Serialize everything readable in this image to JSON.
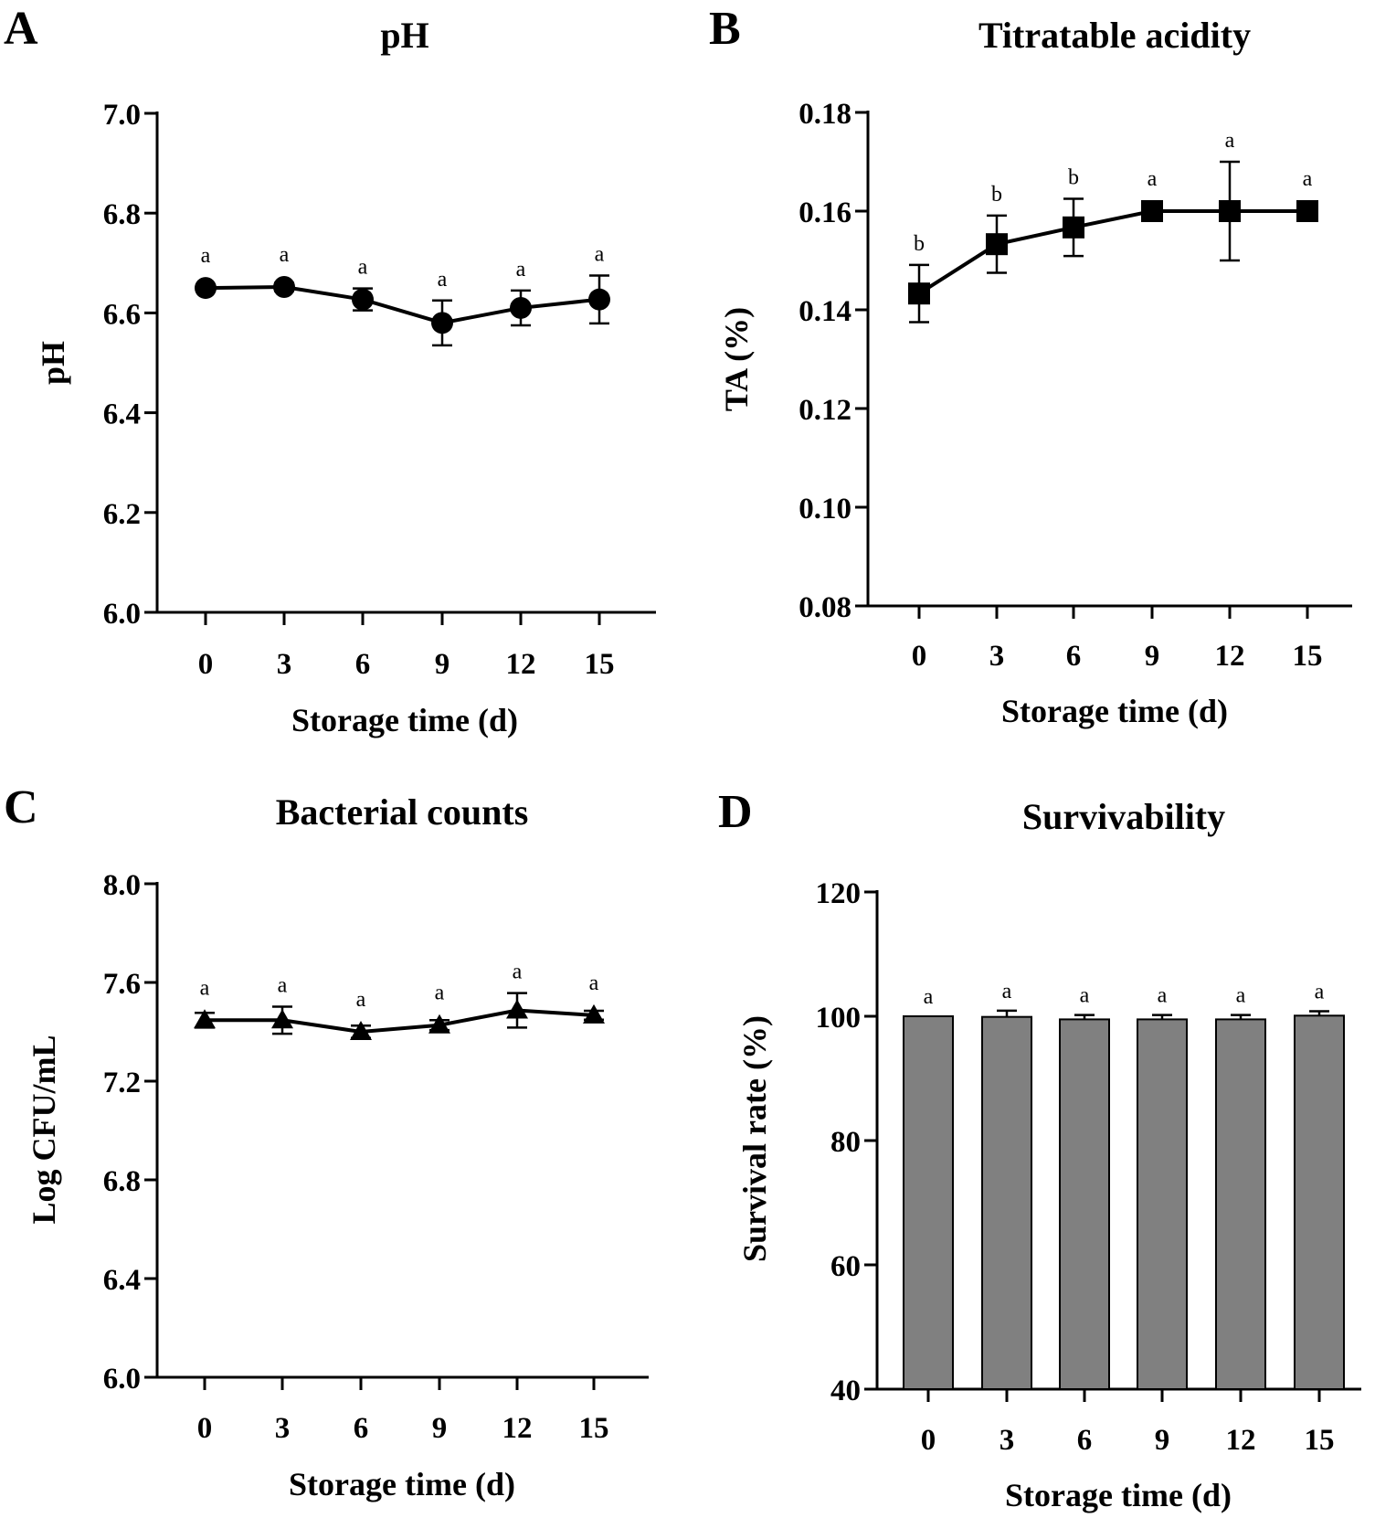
{
  "chart_data": [
    {
      "panel": "A",
      "type": "line",
      "title": "pH",
      "xlabel": "Storage time (d)",
      "ylabel": "pH",
      "x": [
        0,
        3,
        6,
        9,
        12,
        15
      ],
      "x_tick_labels": [
        "0",
        "3",
        "6",
        "9",
        "12",
        "15"
      ],
      "values": [
        6.65,
        6.652,
        6.627,
        6.58,
        6.61,
        6.627
      ],
      "errors": [
        0.006,
        0.008,
        0.022,
        0.045,
        0.035,
        0.048
      ],
      "significance": [
        "a",
        "a",
        "a",
        "a",
        "a",
        "a"
      ],
      "marker": "circle",
      "ylim": [
        6.0,
        7.0
      ],
      "y_ticks": [
        6.0,
        6.2,
        6.4,
        6.6,
        6.8,
        7.0
      ],
      "y_tick_labels": [
        "6.0",
        "6.2",
        "6.4",
        "6.6",
        "6.8",
        "7.0"
      ],
      "grid": false
    },
    {
      "panel": "B",
      "type": "line",
      "title": "Titratable acidity",
      "xlabel": "Storage time (d)",
      "ylabel": "TA (%)",
      "x": [
        0,
        3,
        6,
        9,
        12,
        15
      ],
      "x_tick_labels": [
        "0",
        "3",
        "6",
        "9",
        "12",
        "15"
      ],
      "values": [
        0.1433,
        0.1533,
        0.1567,
        0.16,
        0.16,
        0.16
      ],
      "errors": [
        0.0058,
        0.0058,
        0.0058,
        0.0,
        0.01,
        0.0
      ],
      "significance": [
        "b",
        "b",
        "b",
        "a",
        "a",
        "a"
      ],
      "marker": "square",
      "ylim": [
        0.08,
        0.18
      ],
      "y_ticks": [
        0.08,
        0.1,
        0.12,
        0.14,
        0.16,
        0.18
      ],
      "y_tick_labels": [
        "0.08",
        "0.10",
        "0.12",
        "0.14",
        "0.16",
        "0.18"
      ],
      "grid": false
    },
    {
      "panel": "C",
      "type": "line",
      "title": "Bacterial counts",
      "xlabel": "Storage time (d)",
      "ylabel": "Log CFU/mL",
      "x": [
        0,
        3,
        6,
        9,
        12,
        15
      ],
      "x_tick_labels": [
        "0",
        "3",
        "6",
        "9",
        "12",
        "15"
      ],
      "values": [
        7.447,
        7.447,
        7.4,
        7.427,
        7.487,
        7.467
      ],
      "errors": [
        0.03,
        0.055,
        0.025,
        0.02,
        0.07,
        0.018
      ],
      "significance": [
        "a",
        "a",
        "a",
        "a",
        "a",
        "a"
      ],
      "marker": "triangle",
      "ylim": [
        6.0,
        8.0
      ],
      "y_ticks": [
        6.0,
        6.4,
        6.8,
        7.2,
        7.6,
        8.0
      ],
      "y_tick_labels": [
        "6.0",
        "6.4",
        "6.8",
        "7.2",
        "7.6",
        "8.0"
      ],
      "grid": false
    },
    {
      "panel": "D",
      "type": "bar",
      "title": "Survivability",
      "xlabel": "Storage time (d)",
      "ylabel": "Survival rate (%)",
      "categories": [
        "0",
        "3",
        "6",
        "9",
        "12",
        "15"
      ],
      "values": [
        100.0,
        99.9,
        99.5,
        99.5,
        99.5,
        100.1
      ],
      "errors": [
        0.0,
        1.0,
        0.7,
        0.7,
        0.7,
        0.7
      ],
      "significance": [
        "a",
        "a",
        "a",
        "a",
        "a",
        "a"
      ],
      "bar_color": "#808080",
      "ylim": [
        40,
        120
      ],
      "y_ticks": [
        40,
        60,
        80,
        100,
        120
      ],
      "y_tick_labels": [
        "40",
        "60",
        "80",
        "100",
        "120"
      ],
      "grid": false
    }
  ]
}
